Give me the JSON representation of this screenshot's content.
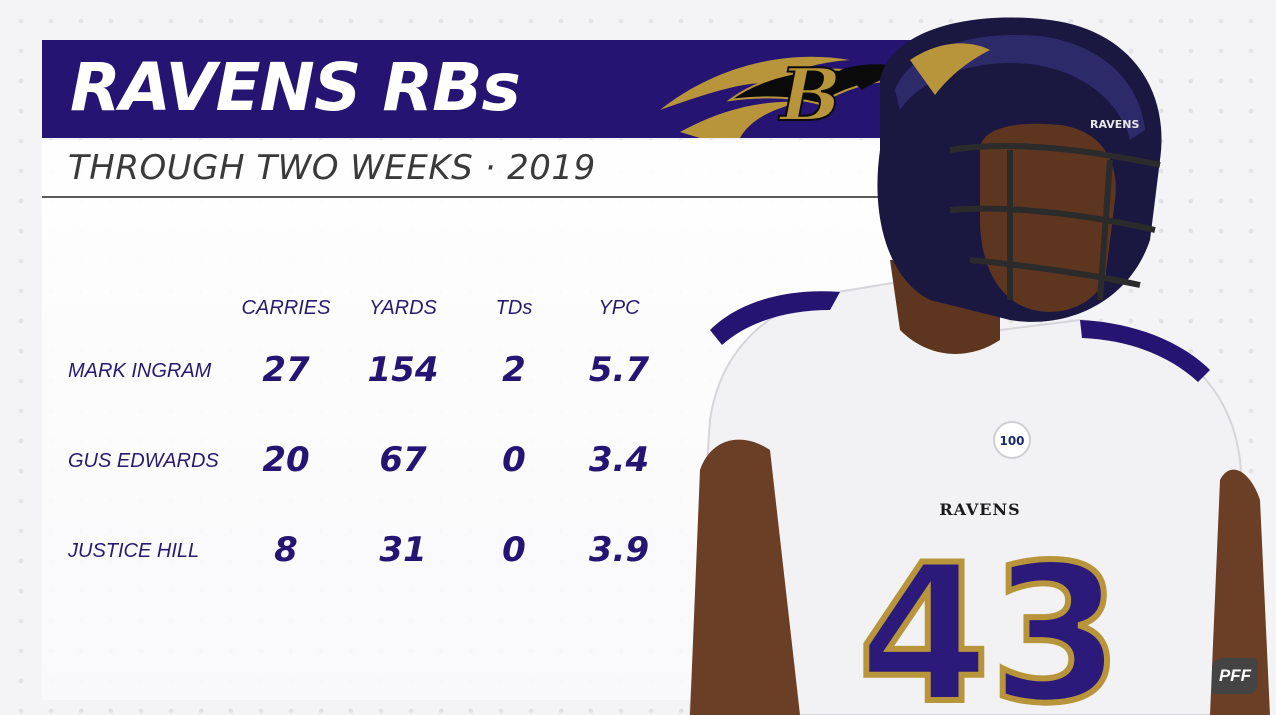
{
  "header": {
    "title": "RAVENS RBs",
    "subtitle": "THROUGH TWO WEEKS · 2019"
  },
  "table": {
    "columns": [
      "CARRIES",
      "YARDS",
      "TDs",
      "YPC"
    ],
    "rows": [
      {
        "name": "MARK INGRAM",
        "carries": "27",
        "yards": "154",
        "tds": "2",
        "ypc": "5.7"
      },
      {
        "name": "GUS EDWARDS",
        "carries": "20",
        "yards": "67",
        "tds": "0",
        "ypc": "3.4"
      },
      {
        "name": "JUSTICE HILL",
        "carries": "8",
        "yards": "31",
        "tds": "0",
        "ypc": "3.9"
      }
    ]
  },
  "player_photo": {
    "jersey_team": "RAVENS",
    "jersey_number": "43",
    "helmet_text": "RAVENS"
  },
  "branding": {
    "watermark": "PFF"
  },
  "colors": {
    "purple": "#261472",
    "gold": "#b8953a",
    "text_dark": "#3a3a3a"
  }
}
